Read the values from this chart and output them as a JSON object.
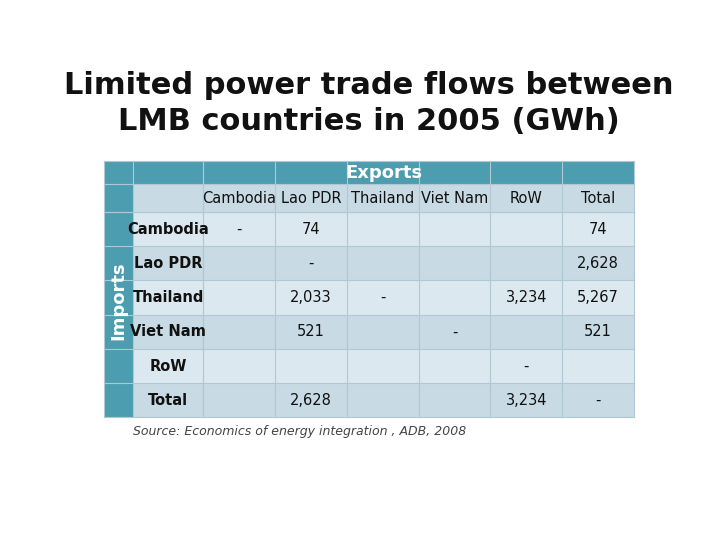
{
  "title": "Limited power trade flows between\nLMB countries in 2005 (GWh)",
  "exports_label": "Exports",
  "imports_label": "Imports",
  "source": "Source: Economics of energy integration , ADB, 2008",
  "col_headers": [
    "Cambodia",
    "Lao PDR",
    "Thailand",
    "Viet Nam",
    "RoW",
    "Total"
  ],
  "row_headers": [
    "Cambodia",
    "Lao PDR",
    "Thailand",
    "Viet Nam",
    "RoW",
    "Total"
  ],
  "table_data": [
    [
      "-",
      "74",
      "",
      "",
      "",
      "74"
    ],
    [
      "",
      "-",
      "",
      "",
      "",
      "2,628"
    ],
    [
      "",
      "2,033",
      "-",
      "",
      "3,234",
      "5,267"
    ],
    [
      "",
      "521",
      "",
      "-",
      "",
      "521"
    ],
    [
      "",
      "",
      "",
      "",
      "-",
      ""
    ],
    [
      "",
      "2,628",
      "",
      "",
      "3,234",
      "-"
    ]
  ],
  "header_bg": "#4d9db0",
  "header_text": "#ffffff",
  "row_bg_odd": "#dce8ef",
  "row_bg_even": "#c8dae3",
  "col_header_bg": "#c8dae3",
  "imports_bg": "#4d9db0",
  "imports_text": "#ffffff",
  "title_fontsize": 22,
  "table_fontsize": 10.5,
  "header_fontsize": 13,
  "source_fontsize": 9
}
